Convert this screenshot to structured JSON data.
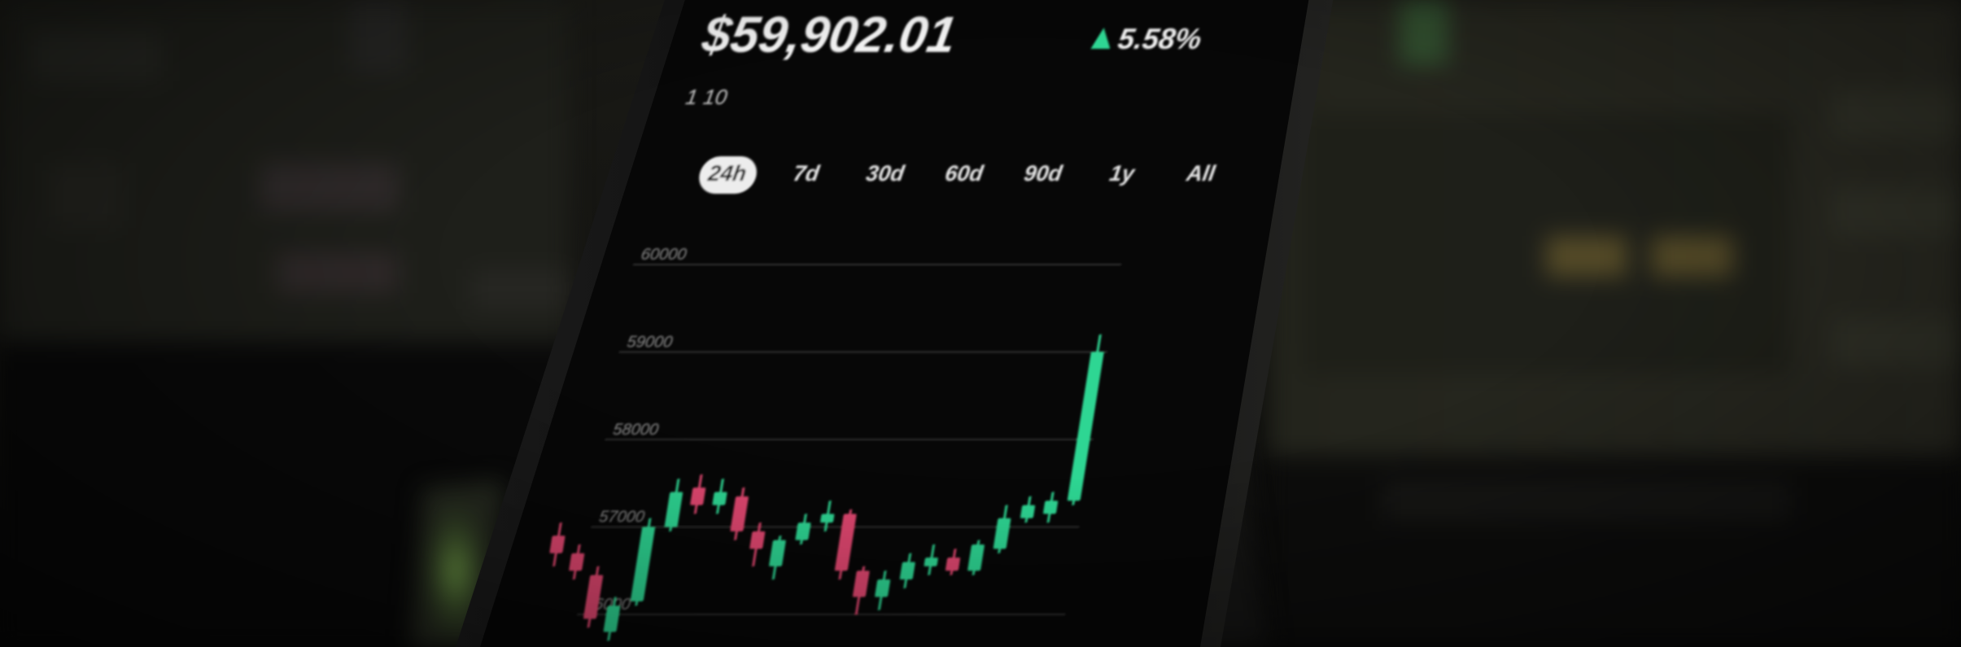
{
  "scene": {
    "colors": {
      "background": "#0b0b0a",
      "screen": "#080808",
      "up": "#2ed693",
      "down": "#e0476f"
    }
  },
  "phone_app": {
    "price": "$59,902.01",
    "change": "5.58%",
    "change_icon": "triangle-up-icon",
    "sub_label": "1 10",
    "timeframes": [
      "24h",
      "7d",
      "30d",
      "60d",
      "90d",
      "1y",
      "All"
    ],
    "selected_timeframe": "24h",
    "y_ticks": [
      "60000",
      "59000",
      "58000",
      "57000",
      "56000"
    ],
    "chart_data": {
      "type": "candlestick",
      "title": "",
      "ylim": [
        56000,
        60000
      ],
      "ticks": [
        60000,
        59000,
        58000,
        57000,
        56000
      ],
      "candles": [
        {
          "o": 56900,
          "c": 56700,
          "h": 57050,
          "l": 56550,
          "dir": "down"
        },
        {
          "o": 56700,
          "c": 56500,
          "h": 56800,
          "l": 56400,
          "dir": "down"
        },
        {
          "o": 56450,
          "c": 55950,
          "h": 56550,
          "l": 55850,
          "dir": "down"
        },
        {
          "o": 55800,
          "c": 56100,
          "h": 56200,
          "l": 55700,
          "dir": "up"
        },
        {
          "o": 56150,
          "c": 57000,
          "h": 57100,
          "l": 56100,
          "dir": "up"
        },
        {
          "o": 57000,
          "c": 57400,
          "h": 57550,
          "l": 56950,
          "dir": "up"
        },
        {
          "o": 57450,
          "c": 57250,
          "h": 57600,
          "l": 57150,
          "dir": "down"
        },
        {
          "o": 57250,
          "c": 57400,
          "h": 57550,
          "l": 57150,
          "dir": "up"
        },
        {
          "o": 57350,
          "c": 56950,
          "h": 57450,
          "l": 56850,
          "dir": "down"
        },
        {
          "o": 56950,
          "c": 56750,
          "h": 57050,
          "l": 56550,
          "dir": "down"
        },
        {
          "o": 56550,
          "c": 56850,
          "h": 56900,
          "l": 56400,
          "dir": "up"
        },
        {
          "o": 56850,
          "c": 57050,
          "h": 57150,
          "l": 56800,
          "dir": "up"
        },
        {
          "o": 57050,
          "c": 57150,
          "h": 57300,
          "l": 56950,
          "dir": "up"
        },
        {
          "o": 57150,
          "c": 56500,
          "h": 57200,
          "l": 56400,
          "dir": "down"
        },
        {
          "o": 56500,
          "c": 56200,
          "h": 56550,
          "l": 56000,
          "dir": "down"
        },
        {
          "o": 56200,
          "c": 56400,
          "h": 56500,
          "l": 56050,
          "dir": "up"
        },
        {
          "o": 56400,
          "c": 56600,
          "h": 56700,
          "l": 56300,
          "dir": "up"
        },
        {
          "o": 56550,
          "c": 56650,
          "h": 56800,
          "l": 56450,
          "dir": "up"
        },
        {
          "o": 56650,
          "c": 56500,
          "h": 56750,
          "l": 56450,
          "dir": "down"
        },
        {
          "o": 56500,
          "c": 56800,
          "h": 56850,
          "l": 56450,
          "dir": "up"
        },
        {
          "o": 56750,
          "c": 57100,
          "h": 57250,
          "l": 56700,
          "dir": "up"
        },
        {
          "o": 57100,
          "c": 57250,
          "h": 57350,
          "l": 57050,
          "dir": "up"
        },
        {
          "o": 57150,
          "c": 57300,
          "h": 57400,
          "l": 57050,
          "dir": "up"
        },
        {
          "o": 57300,
          "c": 59000,
          "h": 59200,
          "l": 57250,
          "dir": "up"
        }
      ]
    }
  }
}
